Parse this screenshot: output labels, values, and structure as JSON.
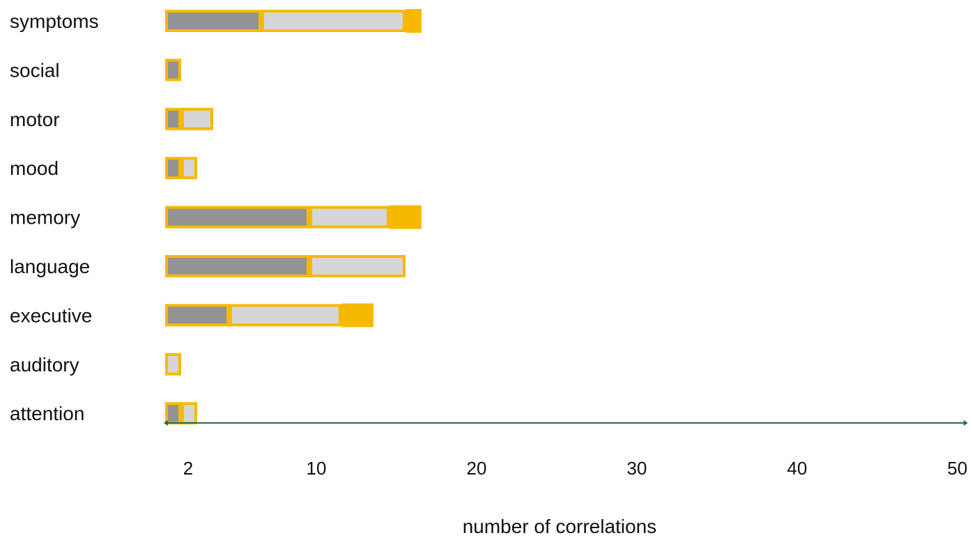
{
  "chart_data": {
    "type": "bar",
    "orientation": "horizontal",
    "stacked": true,
    "categories": [
      "symptoms",
      "social",
      "motor",
      "mood",
      "memory",
      "language",
      "executive",
      "auditory",
      "attention"
    ],
    "series": [
      {
        "values": [
          6,
          1,
          1,
          1,
          9,
          9,
          4,
          0,
          1
        ],
        "color": "#939393"
      },
      {
        "values": [
          9,
          0,
          2,
          1,
          5,
          6,
          7,
          1,
          1
        ],
        "color": "#d6d6d6"
      },
      {
        "values": [
          1,
          0,
          0,
          0,
          2,
          0,
          2,
          0,
          0
        ],
        "color": "#f7b900"
      }
    ],
    "outline_color": "#f7b900",
    "xlabel": "number of correlations",
    "xticks": [
      2,
      10,
      20,
      30,
      40,
      50
    ],
    "xlim": [
      0,
      50
    ],
    "axis_color": "#1e6b62",
    "grid": false,
    "legend": "none"
  }
}
